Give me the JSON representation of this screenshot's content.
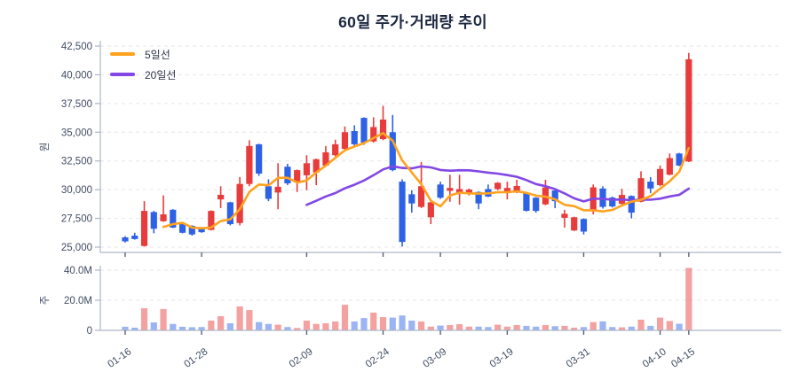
{
  "title": "60일 주가·거래량 추이",
  "legend": [
    {
      "label": "5일선",
      "color": "#FFA21F"
    },
    {
      "label": "20일선",
      "color": "#8247E5"
    }
  ],
  "axes": {
    "price_unit_label": "원",
    "volume_unit_label": "주",
    "price_ticks": [
      {
        "v": 25000,
        "label": "25,000"
      },
      {
        "v": 27500,
        "label": "27,500"
      },
      {
        "v": 30000,
        "label": "30,000"
      },
      {
        "v": 32500,
        "label": "32,500"
      },
      {
        "v": 35000,
        "label": "35,000"
      },
      {
        "v": 37500,
        "label": "37,500"
      },
      {
        "v": 40000,
        "label": "40,000"
      },
      {
        "v": 42500,
        "label": "42,500"
      }
    ],
    "volume_ticks": [
      {
        "v": 0,
        "label": "0"
      },
      {
        "v": 20,
        "label": "20.0M"
      },
      {
        "v": 40,
        "label": "40.0M"
      }
    ],
    "x_ticks": [
      {
        "label": "01-16",
        "i": 0
      },
      {
        "label": "01-28",
        "i": 8
      },
      {
        "label": "02-09",
        "i": 19
      },
      {
        "label": "02-24",
        "i": 27
      },
      {
        "label": "03-09",
        "i": 33
      },
      {
        "label": "03-19",
        "i": 40
      },
      {
        "label": "03-31",
        "i": 48
      },
      {
        "label": "04-10",
        "i": 56
      },
      {
        "label": "04-15",
        "i": 59
      }
    ]
  },
  "colors": {
    "up": "#E83B3B",
    "down": "#2E62E6",
    "ma5": "#FFA21F",
    "ma20": "#8247E5",
    "grid": "#E4E6EC",
    "spine": "#AEB6C6",
    "axis_text": "#414D63",
    "title_text": "#1C2740",
    "volume_opacity": 0.48
  },
  "chart_data": {
    "type": "candlestick+volume",
    "title": "60일 주가·거래량 추이",
    "price_range": [
      25000,
      42500
    ],
    "volume_range_millions": [
      0,
      40
    ],
    "ma_series": [
      {
        "name": "5일선",
        "period": 5,
        "color": "#FFA21F"
      },
      {
        "name": "20일선",
        "period": 20,
        "color": "#8247E5"
      }
    ],
    "candles_ohlc": [
      [
        25850,
        25950,
        25400,
        25500
      ],
      [
        26000,
        26250,
        25650,
        25700
      ],
      [
        25100,
        29000,
        25050,
        28150
      ],
      [
        28050,
        28150,
        26200,
        26600
      ],
      [
        27250,
        29500,
        27200,
        27850
      ],
      [
        28250,
        28300,
        26650,
        26700
      ],
      [
        27000,
        27100,
        26200,
        26250
      ],
      [
        26850,
        26900,
        26000,
        26100
      ],
      [
        26700,
        26750,
        26250,
        26300
      ],
      [
        26500,
        28200,
        26450,
        28150
      ],
      [
        29150,
        30300,
        28400,
        29550
      ],
      [
        28900,
        28950,
        26900,
        27000
      ],
      [
        27100,
        31100,
        26900,
        30500
      ],
      [
        30500,
        34300,
        30300,
        33800
      ],
      [
        33950,
        34000,
        31200,
        31400
      ],
      [
        30300,
        30900,
        29000,
        29200
      ],
      [
        29750,
        32300,
        28300,
        30250
      ],
      [
        32000,
        32250,
        30400,
        30550
      ],
      [
        30700,
        31750,
        29800,
        31700
      ],
      [
        31250,
        33000,
        29950,
        32300
      ],
      [
        31500,
        32700,
        30400,
        32650
      ],
      [
        32100,
        33800,
        32000,
        33250
      ],
      [
        33000,
        34350,
        32900,
        33950
      ],
      [
        33550,
        35500,
        33450,
        35000
      ],
      [
        35100,
        35600,
        33800,
        33950
      ],
      [
        36250,
        36300,
        33900,
        34100
      ],
      [
        34200,
        36300,
        34100,
        35450
      ],
      [
        34400,
        37300,
        34300,
        36100
      ],
      [
        35000,
        36500,
        31600,
        31700
      ],
      [
        30700,
        30900,
        25050,
        25450
      ],
      [
        29600,
        29950,
        28000,
        28800
      ],
      [
        28500,
        32400,
        28400,
        30300
      ],
      [
        27600,
        29150,
        27000,
        28900
      ],
      [
        30450,
        30700,
        29200,
        29300
      ],
      [
        29900,
        31300,
        28950,
        30150
      ],
      [
        29700,
        31300,
        28700,
        30050
      ],
      [
        29700,
        30100,
        29500,
        30000
      ],
      [
        29800,
        29850,
        28300,
        28800
      ],
      [
        30050,
        30450,
        29350,
        29400
      ],
      [
        30050,
        30650,
        29950,
        30600
      ],
      [
        29700,
        30700,
        29150,
        30150
      ],
      [
        29780,
        30860,
        29700,
        30320
      ],
      [
        29700,
        29750,
        28100,
        28160
      ],
      [
        29300,
        29350,
        28000,
        28150
      ],
      [
        28720,
        30860,
        28650,
        30190
      ],
      [
        29930,
        29950,
        28390,
        29000
      ],
      [
        27550,
        28250,
        26700,
        27900
      ],
      [
        26450,
        27650,
        26400,
        27600
      ],
      [
        27450,
        27500,
        26100,
        26350
      ],
      [
        28150,
        30450,
        27850,
        30200
      ],
      [
        30100,
        30300,
        28350,
        28500
      ],
      [
        29310,
        29400,
        28450,
        28540
      ],
      [
        28770,
        30080,
        28700,
        29540
      ],
      [
        29450,
        29500,
        27500,
        28000
      ],
      [
        28950,
        31600,
        28900,
        31000
      ],
      [
        30700,
        31090,
        29700,
        30100
      ],
      [
        30400,
        32100,
        30300,
        31800
      ],
      [
        31300,
        33150,
        31250,
        32750
      ],
      [
        33150,
        33200,
        32050,
        32100
      ],
      [
        32450,
        41900,
        32400,
        41350
      ]
    ],
    "volumes_millions": [
      2.4,
      1.8,
      14.7,
      5.3,
      14.2,
      4.3,
      2.4,
      2.1,
      2.2,
      6.5,
      9.4,
      4.7,
      15.9,
      13.5,
      5.5,
      4.3,
      3.8,
      2.2,
      1.6,
      6.5,
      4.3,
      4.7,
      5.9,
      17.0,
      5.9,
      8.2,
      11.8,
      8.8,
      8.5,
      9.9,
      6.5,
      5.9,
      2.5,
      3.2,
      3.5,
      4.1,
      2.5,
      2.5,
      2.2,
      3.8,
      2.5,
      3.5,
      3.0,
      2.5,
      3.5,
      2.8,
      3.0,
      1.8,
      2.2,
      5.5,
      6.0,
      2.2,
      2.0,
      2.5,
      7.1,
      3.0,
      8.5,
      6.2,
      4.4,
      41.5
    ]
  }
}
